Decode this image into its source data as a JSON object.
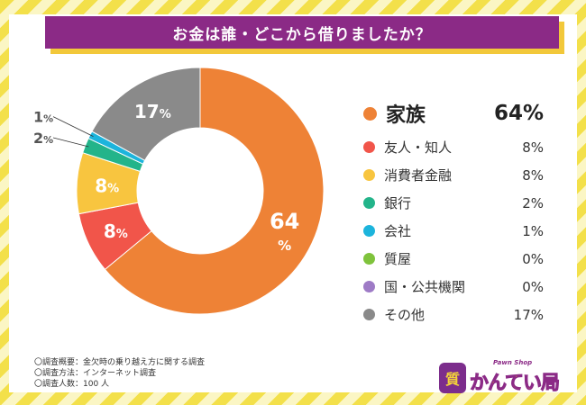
{
  "title": "お金は誰・どこから借りましたか？",
  "chart_data": {
    "type": "pie",
    "title": "お金は誰・どこから借りましたか？",
    "categories": [
      "家族",
      "友人・知人",
      "消費者金融",
      "銀行",
      "会社",
      "質屋",
      "国・公共機関",
      "その他"
    ],
    "values": [
      64,
      8,
      8,
      2,
      1,
      0,
      0,
      17
    ],
    "value_labels": [
      "64%",
      "8%",
      "8%",
      "2%",
      "1%",
      "0%",
      "0%",
      "17%"
    ],
    "colors": [
      "#ee8236",
      "#f1554a",
      "#f8c53f",
      "#23b48a",
      "#1cb4dc",
      "#7fc33c",
      "#9e7bc6",
      "#8a8a8a"
    ],
    "style": "donut"
  },
  "notes": [
    "〇調査概要：金欠時の乗り越え方に関する調査",
    "〇調査方法：インターネット調査",
    "〇調査人数：100 人"
  ],
  "logo": {
    "badge": "質",
    "name": "かんてい局",
    "subtitle": "Pawn Shop"
  }
}
